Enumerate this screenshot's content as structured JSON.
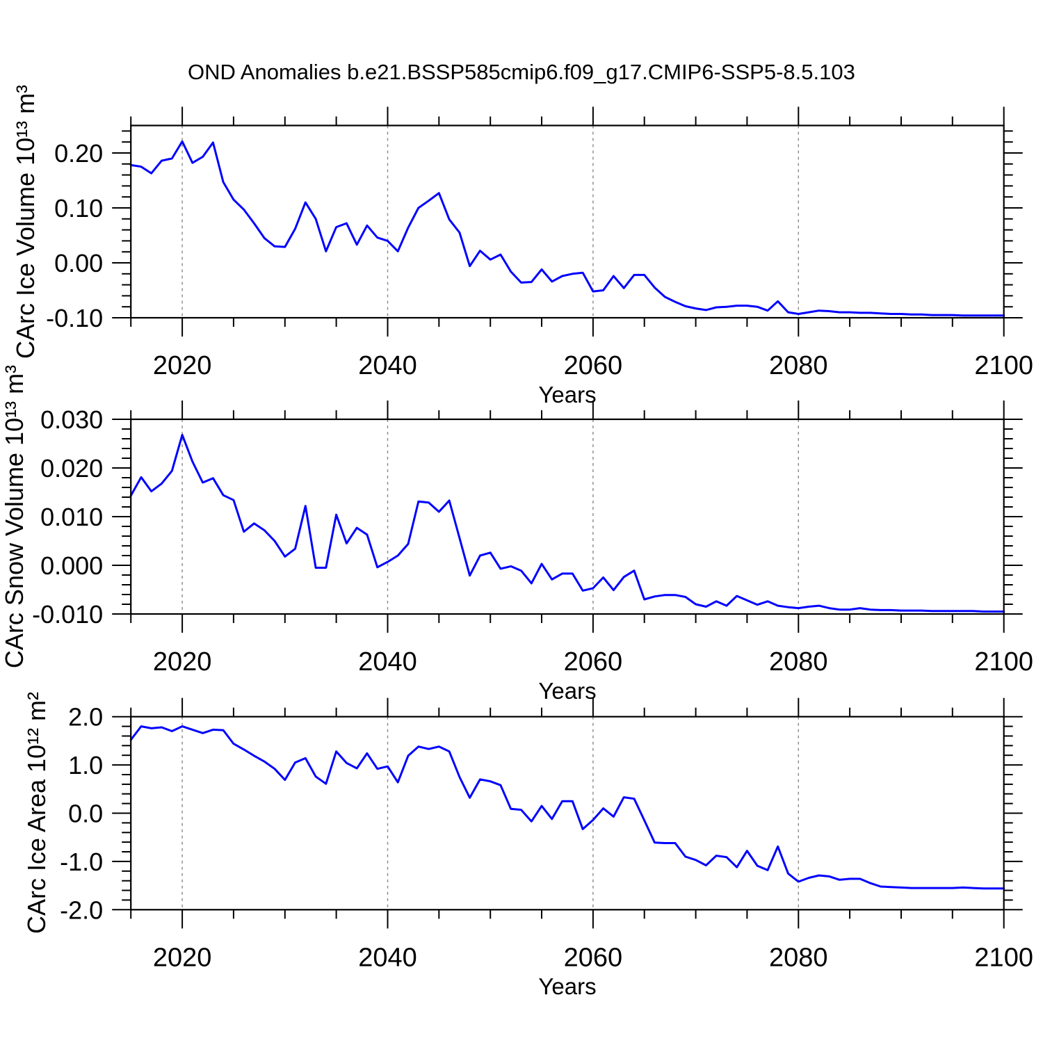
{
  "title": "OND Anomalies b.e21.BSSP585cmip6.f09_g17.CMIP6-SSP5-8.5.103",
  "colors": {
    "line": "#0000ff",
    "grid": "#878787",
    "axis": "#000000",
    "background": "#ffffff"
  },
  "x_axis": {
    "label": "Years",
    "lim": [
      2015,
      2100
    ],
    "major_ticks": [
      2020,
      2040,
      2060,
      2080,
      2100
    ],
    "tick_labels": [
      "2020",
      "2040",
      "2060",
      "2080",
      "2100"
    ],
    "minor_step": 5,
    "gridlines": [
      2020,
      2040,
      2060,
      2080
    ],
    "grid_style": "vertical-dashed"
  },
  "years": [
    2015,
    2016,
    2017,
    2018,
    2019,
    2020,
    2021,
    2022,
    2023,
    2024,
    2025,
    2026,
    2027,
    2028,
    2029,
    2030,
    2031,
    2032,
    2033,
    2034,
    2035,
    2036,
    2037,
    2038,
    2039,
    2040,
    2041,
    2042,
    2043,
    2044,
    2045,
    2046,
    2047,
    2048,
    2049,
    2050,
    2051,
    2052,
    2053,
    2054,
    2055,
    2056,
    2057,
    2058,
    2059,
    2060,
    2061,
    2062,
    2063,
    2064,
    2065,
    2066,
    2067,
    2068,
    2069,
    2070,
    2071,
    2072,
    2073,
    2074,
    2075,
    2076,
    2077,
    2078,
    2079,
    2080,
    2081,
    2082,
    2083,
    2084,
    2085,
    2086,
    2087,
    2088,
    2089,
    2090,
    2091,
    2092,
    2093,
    2094,
    2095,
    2096,
    2097,
    2098,
    2099,
    2100
  ],
  "chart_data": [
    {
      "type": "line",
      "series_name": "CArc Ice Volume anomaly",
      "ylabel": "CArc Ice Volume 10¹³ m³",
      "xlabel": "Years",
      "ylim": [
        -0.1,
        0.25
      ],
      "y_ticks": [
        {
          "v": 0.2,
          "label": "0.20"
        },
        {
          "v": 0.1,
          "label": "0.10"
        },
        {
          "v": 0.0,
          "label": "0.00"
        },
        {
          "v": -0.1,
          "label": "-0.10"
        }
      ],
      "y_minor_step": 0.02,
      "legend": "none",
      "values": [
        0.178,
        0.175,
        0.163,
        0.186,
        0.19,
        0.221,
        0.182,
        0.193,
        0.219,
        0.147,
        0.115,
        0.097,
        0.072,
        0.045,
        0.03,
        0.029,
        0.062,
        0.11,
        0.08,
        0.021,
        0.065,
        0.072,
        0.033,
        0.068,
        0.046,
        0.04,
        0.021,
        0.064,
        0.1,
        0.113,
        0.127,
        0.079,
        0.055,
        -0.006,
        0.022,
        0.006,
        0.015,
        -0.016,
        -0.036,
        -0.035,
        -0.012,
        -0.034,
        -0.024,
        -0.02,
        -0.018,
        -0.052,
        -0.05,
        -0.024,
        -0.046,
        -0.022,
        -0.022,
        -0.045,
        -0.062,
        -0.071,
        -0.079,
        -0.083,
        -0.086,
        -0.081,
        -0.08,
        -0.078,
        -0.078,
        -0.08,
        -0.087,
        -0.07,
        -0.09,
        -0.093,
        -0.09,
        -0.087,
        -0.088,
        -0.09,
        -0.09,
        -0.091,
        -0.091,
        -0.092,
        -0.093,
        -0.093,
        -0.094,
        -0.094,
        -0.095,
        -0.095,
        -0.095,
        -0.096,
        -0.096,
        -0.096,
        -0.096,
        -0.096
      ]
    },
    {
      "type": "line",
      "series_name": "CArc Snow Volume anomaly",
      "ylabel": "CArc Snow Volume 10¹³ m³",
      "xlabel": "Years",
      "ylim": [
        -0.01,
        0.03
      ],
      "y_ticks": [
        {
          "v": 0.03,
          "label": "0.030"
        },
        {
          "v": 0.02,
          "label": "0.020"
        },
        {
          "v": 0.01,
          "label": "0.010"
        },
        {
          "v": 0.0,
          "label": "0.000"
        },
        {
          "v": -0.01,
          "label": "-0.010"
        }
      ],
      "y_minor_step": 0.002,
      "legend": "none",
      "values": [
        0.0143,
        0.0181,
        0.0152,
        0.0168,
        0.0194,
        0.0268,
        0.0213,
        0.017,
        0.0179,
        0.0144,
        0.0134,
        0.0069,
        0.0086,
        0.0072,
        0.005,
        0.0018,
        0.0034,
        0.0122,
        -0.0005,
        -0.0005,
        0.0104,
        0.0045,
        0.0077,
        0.0063,
        -0.0004,
        0.0007,
        0.002,
        0.0044,
        0.0131,
        0.0129,
        0.011,
        0.0133,
        0.0056,
        -0.0021,
        0.002,
        0.0026,
        -0.0007,
        -0.0002,
        -0.0011,
        -0.0037,
        0.0003,
        -0.0029,
        -0.0017,
        -0.0017,
        -0.0052,
        -0.0047,
        -0.0025,
        -0.0051,
        -0.0024,
        -0.0011,
        -0.007,
        -0.0064,
        -0.0061,
        -0.0061,
        -0.0065,
        -0.008,
        -0.0085,
        -0.0074,
        -0.0083,
        -0.0063,
        -0.0072,
        -0.0081,
        -0.0074,
        -0.0083,
        -0.0086,
        -0.0088,
        -0.0085,
        -0.0083,
        -0.0088,
        -0.0091,
        -0.0091,
        -0.0088,
        -0.0091,
        -0.0092,
        -0.0092,
        -0.0093,
        -0.0093,
        -0.0093,
        -0.0094,
        -0.0094,
        -0.0094,
        -0.0094,
        -0.0094,
        -0.0095,
        -0.0095,
        -0.0095
      ]
    },
    {
      "type": "line",
      "series_name": "CArc Ice Area anomaly",
      "ylabel": "CArc Ice Area 10¹² m²",
      "xlabel": "Years",
      "ylim": [
        -2.0,
        2.0
      ],
      "y_ticks": [
        {
          "v": 2.0,
          "label": "2.0"
        },
        {
          "v": 1.0,
          "label": "1.0"
        },
        {
          "v": 0.0,
          "label": "0.0"
        },
        {
          "v": -1.0,
          "label": "-1.0"
        },
        {
          "v": -2.0,
          "label": "-2.0"
        }
      ],
      "y_minor_step": 0.2,
      "legend": "none",
      "values": [
        1.52,
        1.8,
        1.76,
        1.78,
        1.7,
        1.8,
        1.73,
        1.66,
        1.73,
        1.72,
        1.44,
        1.32,
        1.19,
        1.07,
        0.92,
        0.69,
        1.05,
        1.14,
        0.76,
        0.61,
        1.28,
        1.04,
        0.93,
        1.24,
        0.92,
        0.97,
        0.64,
        1.19,
        1.38,
        1.33,
        1.38,
        1.28,
        0.75,
        0.32,
        0.7,
        0.66,
        0.58,
        0.09,
        0.07,
        -0.17,
        0.15,
        -0.12,
        0.25,
        0.25,
        -0.33,
        -0.14,
        0.1,
        -0.07,
        0.33,
        0.3,
        -0.15,
        -0.61,
        -0.62,
        -0.62,
        -0.9,
        -0.97,
        -1.08,
        -0.88,
        -0.91,
        -1.12,
        -0.78,
        -1.09,
        -1.18,
        -0.69,
        -1.25,
        -1.42,
        -1.34,
        -1.29,
        -1.31,
        -1.38,
        -1.36,
        -1.36,
        -1.45,
        -1.52,
        -1.53,
        -1.54,
        -1.55,
        -1.55,
        -1.55,
        -1.55,
        -1.55,
        -1.54,
        -1.55,
        -1.56,
        -1.56,
        -1.56
      ]
    }
  ]
}
